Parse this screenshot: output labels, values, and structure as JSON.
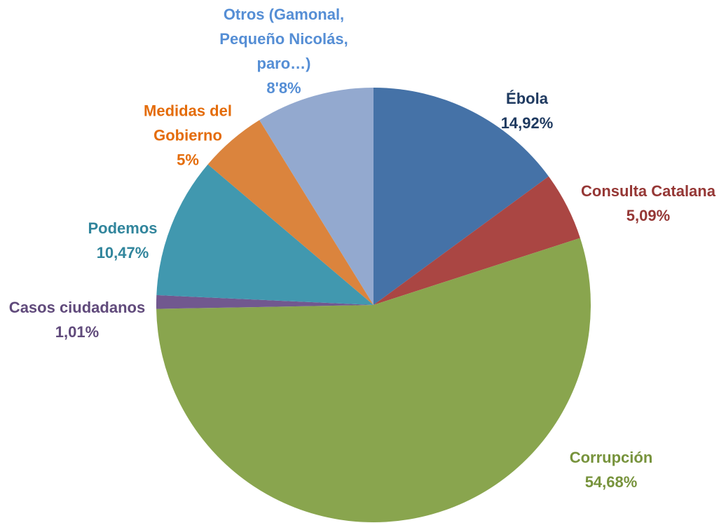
{
  "chart_data": {
    "type": "pie",
    "categories": [
      "Ébola",
      "Consulta Catalana",
      "Corrupción",
      "Casos ciudadanos",
      "Podemos",
      "Medidas del Gobierno",
      "Otros (Gamonal, Pequeño Nicolás, paro…)"
    ],
    "values": [
      14.92,
      5.09,
      54.68,
      1.01,
      10.47,
      5,
      8.8
    ],
    "value_labels": [
      "14,92%",
      "5,09%",
      "54,68%",
      "1,01%",
      "10,47%",
      "5%",
      "8'8%"
    ],
    "colors": [
      "#4572a7",
      "#aa4643",
      "#89a54e",
      "#71588f",
      "#4198af",
      "#db843d",
      "#93a9cf"
    ],
    "label_colors": [
      "#1f3a60",
      "#953735",
      "#77933c",
      "#604a7b",
      "#31859c",
      "#e46c0a",
      "#558ed5"
    ]
  }
}
